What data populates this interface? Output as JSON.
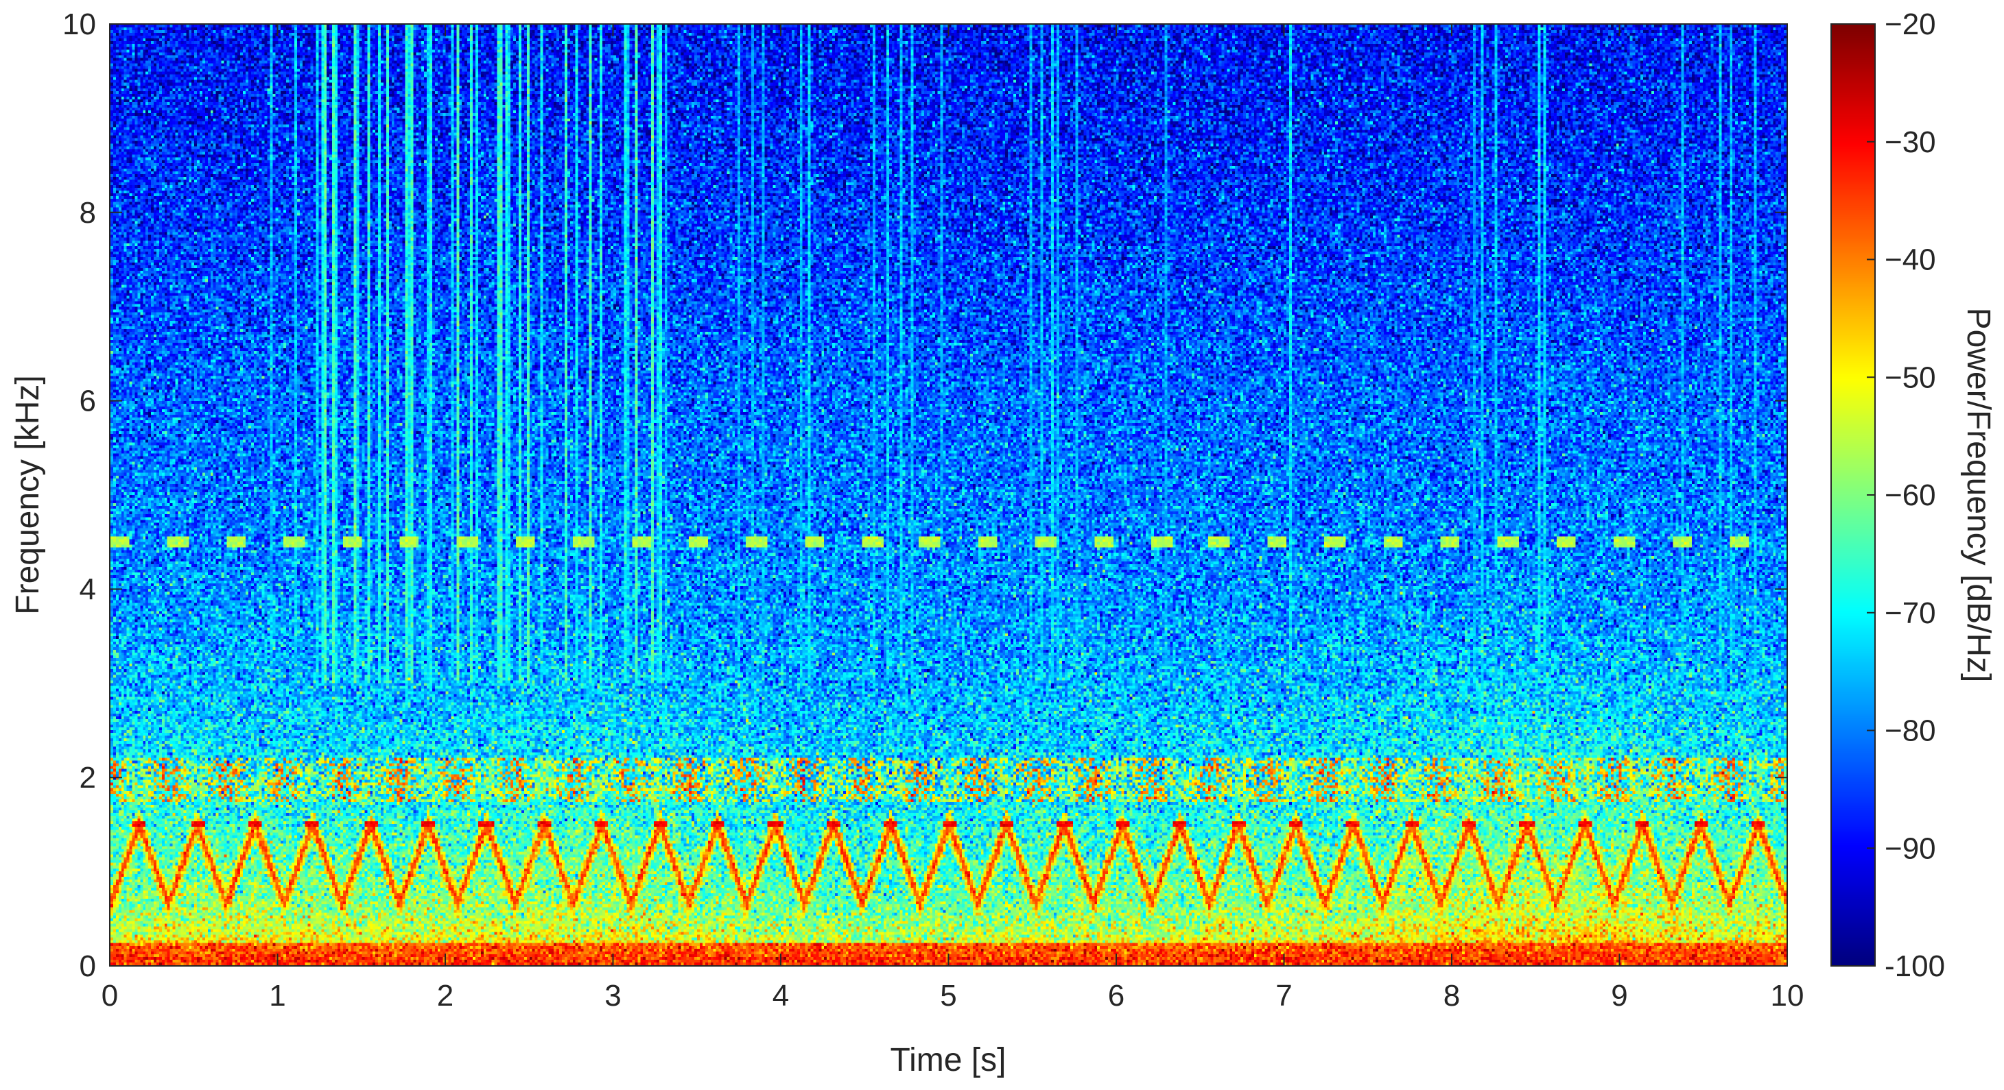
{
  "chart_data": {
    "type": "heatmap",
    "xlabel": "Time [s]",
    "ylabel": "Frequency [kHz]",
    "xlim": [
      0,
      10
    ],
    "ylim": [
      0,
      10
    ],
    "xticks": [
      "0",
      "1",
      "2",
      "3",
      "4",
      "5",
      "6",
      "7",
      "8",
      "9",
      "10"
    ],
    "yticks": [
      "0",
      "2",
      "4",
      "6",
      "8",
      "10"
    ],
    "colorbar": {
      "label": "Power/Frequency [dB/Hz]",
      "clim": [
        -100,
        -20
      ],
      "ticks": [
        "-100",
        "−90",
        "−80",
        "−70",
        "−60",
        "−50",
        "−40",
        "−30",
        "−20"
      ],
      "colormap": "jet"
    },
    "features": {
      "sweep_tone": {
        "f_min_khz": 0.65,
        "f_max_khz": 1.5,
        "period_s": 0.345,
        "level_db": -35
      },
      "harmonic_band": {
        "f_min_khz": 1.75,
        "f_max_khz": 2.2,
        "level_db": -48
      },
      "tone_4_5khz": {
        "freq_khz": 4.5,
        "pulse_period_s": 0.345,
        "level_db": -56
      },
      "low_frequency_band": {
        "f_max_khz": 0.25,
        "level_db": -38
      },
      "broadband_impulses": {
        "t_start_s": 1.2,
        "t_end_s": 3.3,
        "level_db": -72
      }
    }
  }
}
